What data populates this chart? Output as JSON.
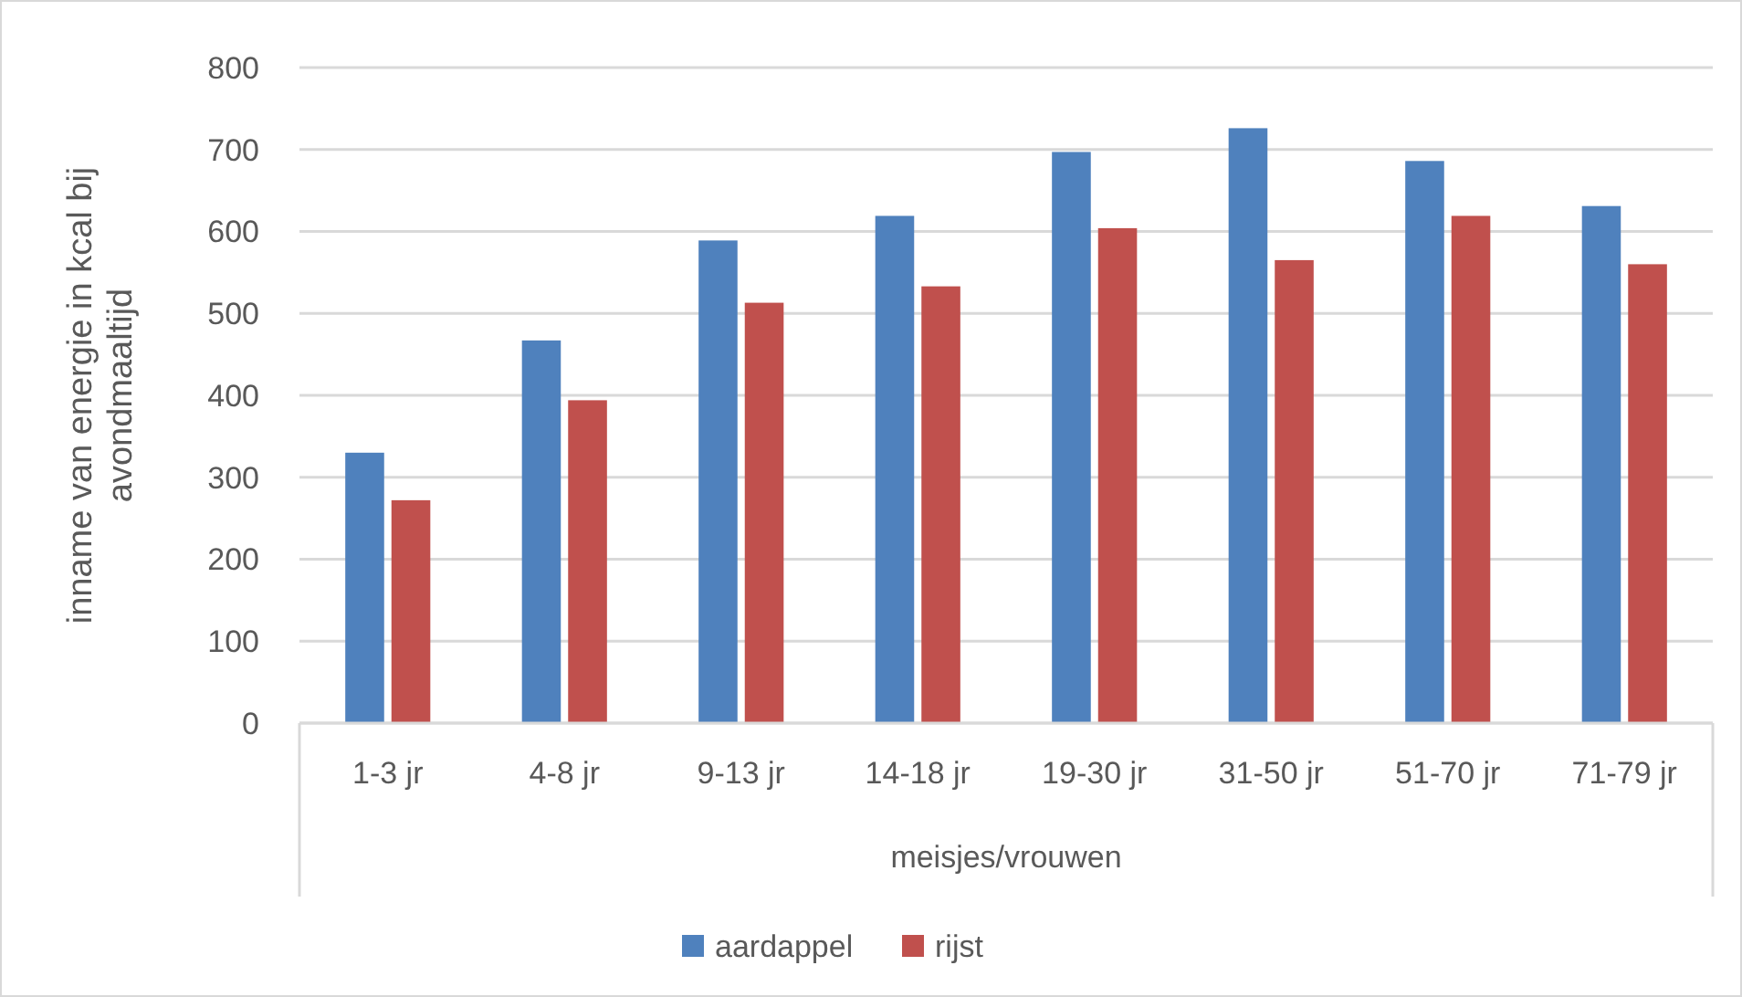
{
  "chart_data": {
    "type": "bar",
    "xlabel": "meisjes/vrouwen",
    "ylabel": "inname van energie in kcal bij avondmaaltijd",
    "categories": [
      "1-3 jr",
      "4-8 jr",
      "9-13 jr",
      "14-18 jr",
      "19-30 jr",
      "31-50 jr",
      "51-70 jr",
      "71-79 jr"
    ],
    "series": [
      {
        "name": "aardappel",
        "color": "#4f81bd",
        "values": [
          330,
          467,
          589,
          619,
          697,
          726,
          686,
          631
        ]
      },
      {
        "name": "rijst",
        "color": "#c0504d",
        "values": [
          272,
          394,
          513,
          533,
          604,
          565,
          619,
          560
        ]
      }
    ],
    "ylim": [
      0,
      800
    ],
    "yticks": [
      0,
      100,
      200,
      300,
      400,
      500,
      600,
      700,
      800
    ],
    "grid": "y",
    "legend": "bottom"
  }
}
